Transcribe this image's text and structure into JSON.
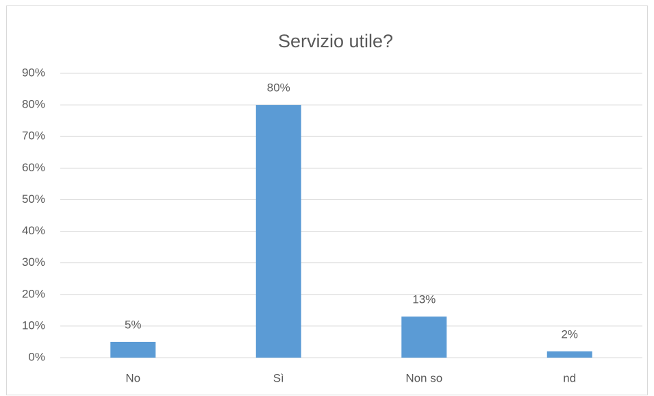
{
  "chart_data": {
    "type": "bar",
    "title": "Servizio utile?",
    "categories": [
      "No",
      "Sì",
      "Non so",
      "nd"
    ],
    "values": [
      5,
      80,
      13,
      2
    ],
    "value_labels": [
      "5%",
      "80%",
      "13%",
      "2%"
    ],
    "color": "#5b9bd5",
    "ylim": [
      0,
      90
    ],
    "yticks": [
      {
        "value": 0,
        "label": "0%"
      },
      {
        "value": 10,
        "label": "10%"
      },
      {
        "value": 20,
        "label": "20%"
      },
      {
        "value": 30,
        "label": "30%"
      },
      {
        "value": 40,
        "label": "40%"
      },
      {
        "value": 50,
        "label": "50%"
      },
      {
        "value": 60,
        "label": "60%"
      },
      {
        "value": 70,
        "label": "70%"
      },
      {
        "value": 80,
        "label": "80%"
      },
      {
        "value": 90,
        "label": "90%"
      }
    ],
    "grid": true
  }
}
